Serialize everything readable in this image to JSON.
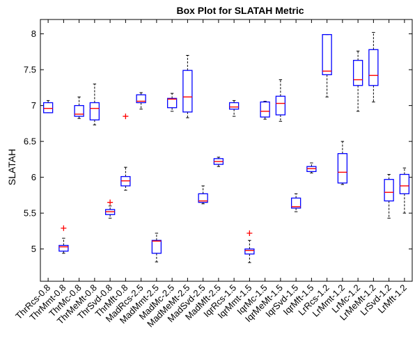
{
  "chart_data": {
    "type": "box",
    "title": "Box Plot for SLATAH Metric",
    "ylabel": "SLATAH",
    "xlabel": "",
    "ylim": [
      4.55,
      8.2
    ],
    "yticks": [
      5,
      5.5,
      6,
      6.5,
      7,
      7.5,
      8
    ],
    "ytick_labels": [
      "5",
      "5.5",
      "6",
      "6.5",
      "7",
      "7.5",
      "8"
    ],
    "grid": false,
    "colors": {
      "box": "#0000ff",
      "median": "#ff0000",
      "whisker": "#000000",
      "outlier": "#ff0000"
    },
    "categories": [
      "ThrRcs-0.8",
      "ThrMmt-0.8",
      "ThrMc-0.8",
      "ThrMeMt-0.8",
      "ThrSvd-0.8",
      "ThrMft-0.8",
      "MadRcs-2.5",
      "MadMmt-2.5",
      "MadMc-2.5",
      "MadMeMt-2.5",
      "MadSvd-2.5",
      "MadMft-2.5",
      "IqrRcs-1.5",
      "IqrMmt-1.5",
      "IqrMc-1.5",
      "IqrMeMt-1.5",
      "IqrSvd-1.5",
      "IqrMft-1.5",
      "LrRcs-1.2",
      "LrMmt-1.2",
      "LrMc-1.2",
      "LrMeMt-1.2",
      "LrSvd-1.2",
      "LrMft-1.2"
    ],
    "boxes": [
      {
        "min": 6.9,
        "q1": 6.9,
        "median": 6.96,
        "q3": 7.04,
        "max": 7.07,
        "outliers": []
      },
      {
        "min": 4.94,
        "q1": 4.97,
        "median": 5.03,
        "q3": 5.05,
        "max": 5.15,
        "outliers": [
          5.29
        ]
      },
      {
        "min": 6.82,
        "q1": 6.85,
        "median": 6.88,
        "q3": 7.0,
        "max": 7.12,
        "outliers": []
      },
      {
        "min": 6.73,
        "q1": 6.8,
        "median": 6.96,
        "q3": 7.04,
        "max": 7.3,
        "outliers": []
      },
      {
        "min": 5.43,
        "q1": 5.48,
        "median": 5.52,
        "q3": 5.55,
        "max": 5.6,
        "outliers": [
          5.65
        ]
      },
      {
        "min": 5.82,
        "q1": 5.88,
        "median": 5.95,
        "q3": 6.01,
        "max": 6.14,
        "outliers": [
          6.85
        ]
      },
      {
        "min": 6.95,
        "q1": 7.04,
        "median": 7.06,
        "q3": 7.15,
        "max": 7.18,
        "outliers": []
      },
      {
        "min": 4.82,
        "q1": 4.94,
        "median": 5.11,
        "q3": 5.12,
        "max": 5.22,
        "outliers": []
      },
      {
        "min": 6.92,
        "q1": 6.97,
        "median": 7.09,
        "q3": 7.1,
        "max": 7.17,
        "outliers": []
      },
      {
        "min": 6.83,
        "q1": 6.91,
        "median": 7.12,
        "q3": 7.49,
        "max": 7.7,
        "outliers": []
      },
      {
        "min": 5.63,
        "q1": 5.65,
        "median": 5.67,
        "q3": 5.77,
        "max": 5.88,
        "outliers": []
      },
      {
        "min": 6.15,
        "q1": 6.18,
        "median": 6.22,
        "q3": 6.26,
        "max": 6.28,
        "outliers": []
      },
      {
        "min": 6.85,
        "q1": 6.95,
        "median": 6.98,
        "q3": 7.04,
        "max": 7.07,
        "outliers": []
      },
      {
        "min": 4.81,
        "q1": 4.93,
        "median": 4.98,
        "q3": 5.0,
        "max": 5.12,
        "outliers": [
          5.22
        ]
      },
      {
        "min": 6.81,
        "q1": 6.84,
        "median": 6.92,
        "q3": 7.05,
        "max": 7.06,
        "outliers": []
      },
      {
        "min": 6.78,
        "q1": 6.87,
        "median": 7.03,
        "q3": 7.13,
        "max": 7.36,
        "outliers": []
      },
      {
        "min": 5.52,
        "q1": 5.57,
        "median": 5.59,
        "q3": 5.71,
        "max": 5.77,
        "outliers": []
      },
      {
        "min": 6.06,
        "q1": 6.08,
        "median": 6.12,
        "q3": 6.15,
        "max": 6.2,
        "outliers": []
      },
      {
        "min": 7.12,
        "q1": 7.43,
        "median": 7.48,
        "q3": 7.99,
        "max": 7.99,
        "outliers": []
      },
      {
        "min": 5.9,
        "q1": 5.92,
        "median": 6.07,
        "q3": 6.33,
        "max": 6.5,
        "outliers": []
      },
      {
        "min": 6.92,
        "q1": 7.28,
        "median": 7.36,
        "q3": 7.63,
        "max": 7.76,
        "outliers": []
      },
      {
        "min": 7.05,
        "q1": 7.28,
        "median": 7.42,
        "q3": 7.78,
        "max": 8.02,
        "outliers": []
      },
      {
        "min": 5.43,
        "q1": 5.67,
        "median": 5.79,
        "q3": 5.97,
        "max": 6.04,
        "outliers": []
      },
      {
        "min": 5.5,
        "q1": 5.77,
        "median": 5.88,
        "q3": 6.04,
        "max": 6.13,
        "outliers": []
      }
    ]
  }
}
